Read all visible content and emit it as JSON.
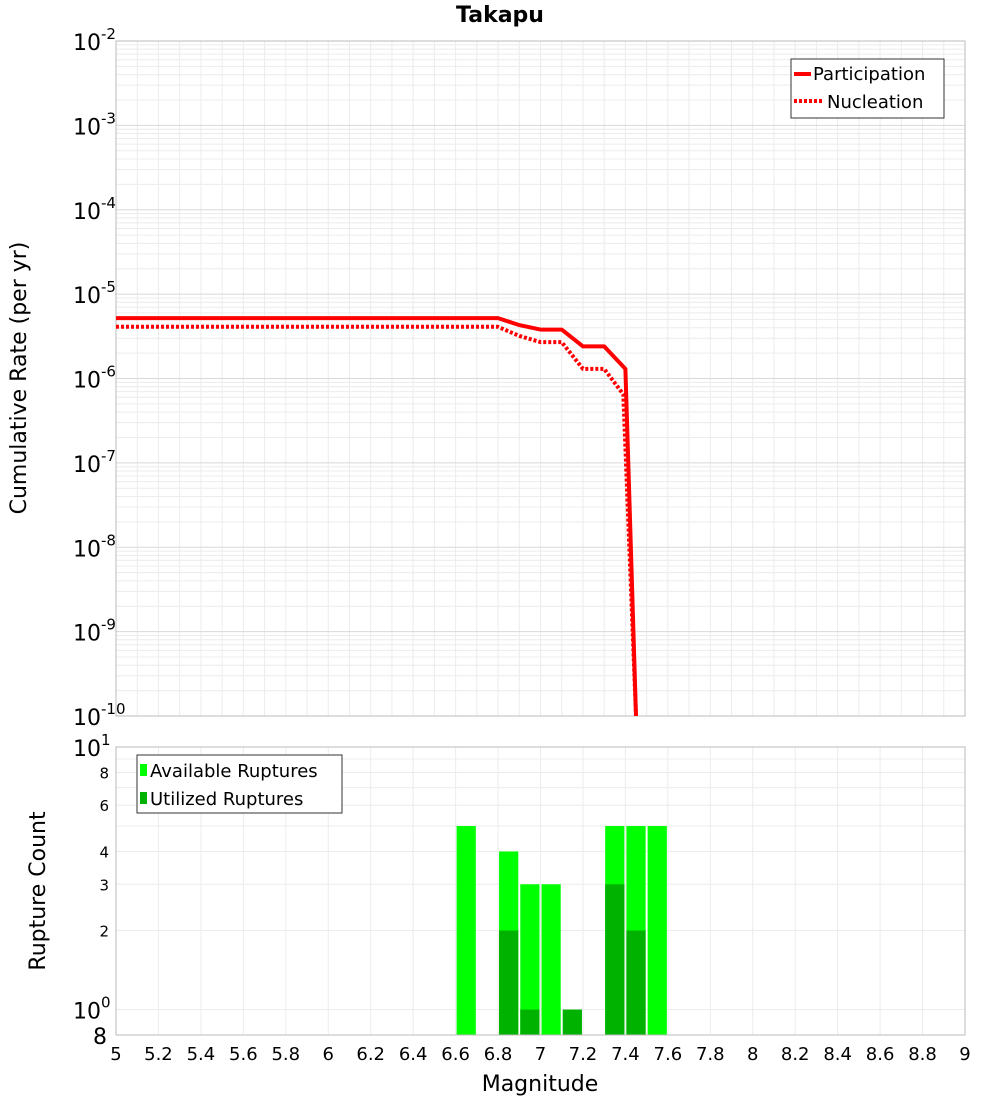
{
  "chart_data": [
    {
      "type": "line",
      "title": "Takapu",
      "xlabel": "",
      "ylabel": "Cumulative Rate (per yr)",
      "yscale": "log",
      "xlim": [
        5,
        9
      ],
      "ylim": [
        1e-10,
        0.01
      ],
      "y_tick_exponents": [
        "-2",
        "-3",
        "-4",
        "-5",
        "-6",
        "-7",
        "-8",
        "-9",
        "-10"
      ],
      "y_tick_base": "10",
      "grid": true,
      "legend_position": "top-right",
      "series": [
        {
          "name": "Participation",
          "style": "solid",
          "color": "#ff0000",
          "x": [
            5.0,
            6.8,
            6.9,
            7.0,
            7.1,
            7.2,
            7.3,
            7.4,
            7.45
          ],
          "y": [
            5.2e-06,
            5.2e-06,
            4.3e-06,
            3.8e-06,
            3.8e-06,
            2.4e-06,
            2.4e-06,
            1.3e-06,
            1e-10
          ]
        },
        {
          "name": "Nucleation",
          "style": "dotted",
          "color": "#ff0000",
          "x": [
            5.0,
            6.8,
            6.9,
            7.0,
            7.1,
            7.2,
            7.3,
            7.39,
            7.45
          ],
          "y": [
            4.1e-06,
            4.1e-06,
            3.2e-06,
            2.7e-06,
            2.7e-06,
            1.3e-06,
            1.3e-06,
            6.5e-07,
            1e-10
          ]
        }
      ]
    },
    {
      "type": "bar",
      "title": "",
      "xlabel": "Magnitude",
      "ylabel": "Rupture Count",
      "yscale": "log",
      "xlim": [
        5,
        9
      ],
      "ylim": [
        0.8,
        10
      ],
      "x_ticks": [
        "5",
        "5.2",
        "5.4",
        "5.6",
        "5.8",
        "6",
        "6.2",
        "6.4",
        "6.6",
        "6.8",
        "7",
        "7.2",
        "7.4",
        "7.6",
        "7.8",
        "8",
        "8.2",
        "8.4",
        "8.6",
        "8.8",
        "9"
      ],
      "y_tick_labels": [
        {
          "value": 8,
          "text": "8"
        },
        {
          "value": 6,
          "text": "6"
        },
        {
          "value": 4,
          "text": "4"
        },
        {
          "value": 3,
          "text": "3"
        },
        {
          "value": 2,
          "text": "2"
        }
      ],
      "y_major_ticks": [
        {
          "value": 10,
          "base": "10",
          "exp": "1"
        },
        {
          "value": 1,
          "base": "10",
          "exp": "0"
        },
        {
          "value": 0.8,
          "base": "8",
          "exp": ""
        }
      ],
      "grid": true,
      "legend_position": "top-left",
      "colors": {
        "available": "#00ff00",
        "utilized": "#00b200"
      },
      "series": [
        {
          "name": "Available Ruptures",
          "x": [
            6.65,
            6.85,
            6.95,
            7.05,
            7.35,
            7.45,
            7.55
          ],
          "values": [
            5,
            4,
            3,
            3,
            5,
            5,
            5
          ]
        },
        {
          "name": "Utilized Ruptures",
          "x": [
            6.85,
            6.95,
            7.15,
            7.35,
            7.45
          ],
          "values": [
            2,
            1,
            1,
            3,
            2
          ]
        }
      ]
    }
  ]
}
